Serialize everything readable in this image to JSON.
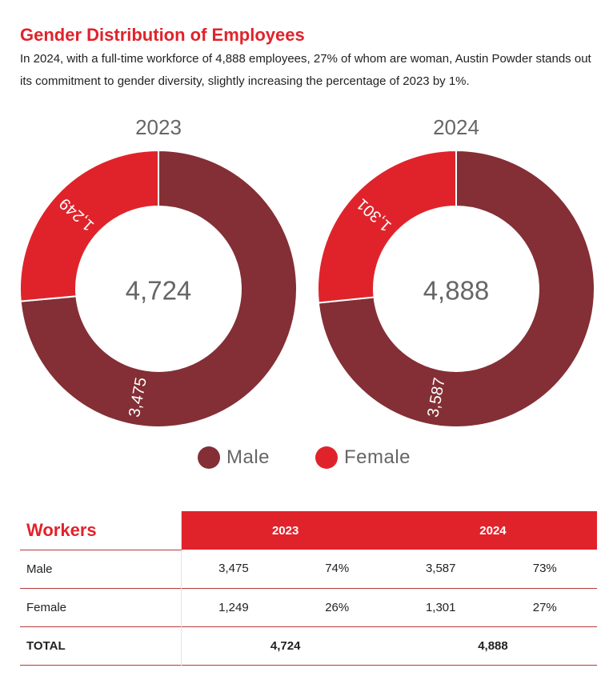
{
  "header": {
    "title": "Gender Distribution of Employees",
    "subtitle": "In 2024, with a full-time workforce of 4,888 employees, 27% of whom are woman, Austin Powder stands out its commitment to gender diversity, slightly increasing the percentage of 2023 by 1%."
  },
  "colors": {
    "male": "#832f35",
    "female": "#e0232b",
    "accent": "#e0232b"
  },
  "chart_data": [
    {
      "type": "pie",
      "title": "2023",
      "center_label": "4,724",
      "series": [
        {
          "name": "Male",
          "value": 3475,
          "label": "3,475"
        },
        {
          "name": "Female",
          "value": 1249,
          "label": "1,249"
        }
      ]
    },
    {
      "type": "pie",
      "title": "2024",
      "center_label": "4,888",
      "series": [
        {
          "name": "Male",
          "value": 3587,
          "label": "3,587"
        },
        {
          "name": "Female",
          "value": 1301,
          "label": "1,301"
        }
      ]
    }
  ],
  "legend": {
    "male": "Male",
    "female": "Female"
  },
  "table": {
    "title": "Workers",
    "years": [
      "2023",
      "2024"
    ],
    "rows": [
      {
        "label": "Male",
        "v2023": "3,475",
        "p2023": "74%",
        "v2024": "3,587",
        "p2024": "73%"
      },
      {
        "label": "Female",
        "v2023": "1,249",
        "p2023": "26%",
        "v2024": "1,301",
        "p2024": "27%"
      }
    ],
    "total": {
      "label": "TOTAL",
      "v2023": "4,724",
      "v2024": "4,888"
    }
  }
}
